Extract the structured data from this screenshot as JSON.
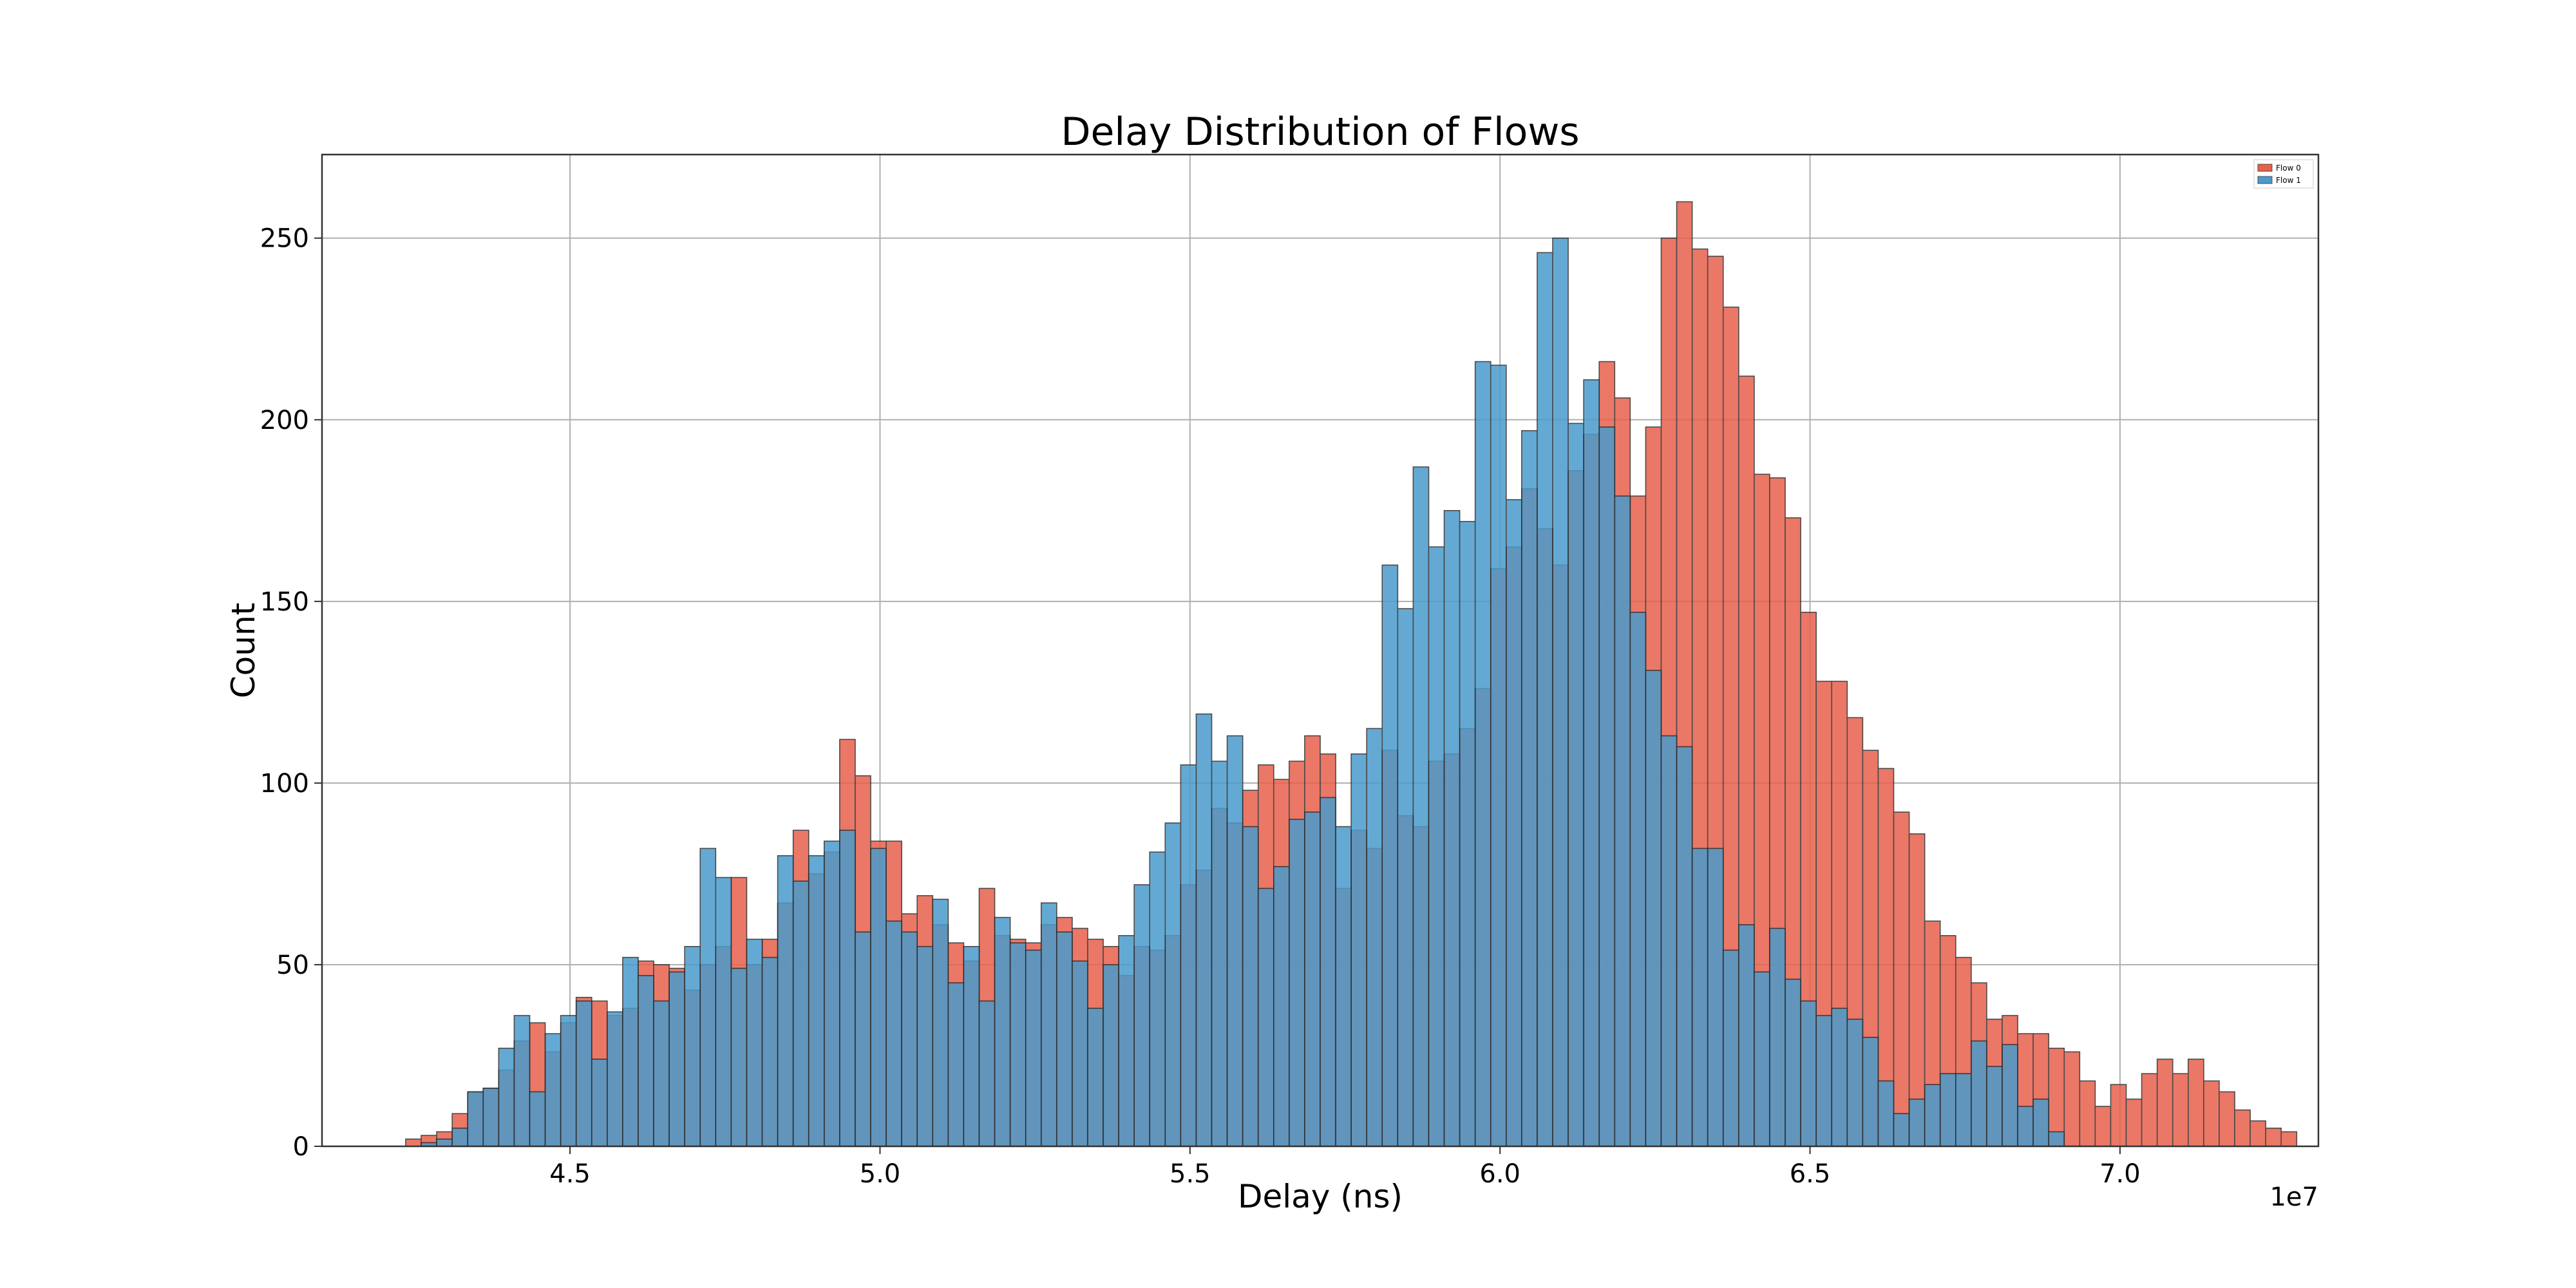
{
  "chart_data": {
    "type": "histogram",
    "title": "Delay Distribution of Flows",
    "xlabel": "Delay (ns)",
    "ylabel": "Count",
    "x_offset_label": "1e7",
    "xlim": [
      4.1,
      7.32
    ],
    "ylim": [
      0,
      273
    ],
    "xticks": [
      4.5,
      5.0,
      5.5,
      6.0,
      6.5,
      7.0
    ],
    "xtick_labels": [
      "4.5",
      "5.0",
      "5.5",
      "6.0",
      "6.5",
      "7.0"
    ],
    "yticks": [
      0,
      50,
      100,
      150,
      200,
      250
    ],
    "ytick_labels": [
      "0",
      "50",
      "100",
      "150",
      "200",
      "250"
    ],
    "grid": true,
    "legend_position": "top-right",
    "bin_start": 4.235,
    "bin_width": 0.025,
    "series": [
      {
        "name": "Flow 0",
        "color": "#e8604c",
        "values": [
          2,
          3,
          4,
          9,
          15,
          16,
          21,
          29,
          34,
          26,
          34,
          41,
          40,
          36,
          38,
          51,
          50,
          49,
          43,
          50,
          55,
          74,
          50,
          57,
          67,
          87,
          75,
          81,
          112,
          102,
          84,
          84,
          64,
          69,
          61,
          56,
          51,
          71,
          58,
          57,
          56,
          61,
          63,
          60,
          57,
          55,
          47,
          55,
          54,
          58,
          72,
          76,
          93,
          89,
          98,
          105,
          101,
          106,
          113,
          108,
          71,
          87,
          82,
          109,
          91,
          88,
          106,
          108,
          115,
          126,
          159,
          165,
          181,
          170,
          160,
          186,
          196,
          216,
          206,
          179,
          198,
          250,
          260,
          247,
          245,
          231,
          212,
          185,
          184,
          173,
          147,
          128,
          128,
          118,
          109,
          104,
          92,
          86,
          62,
          58,
          52,
          45,
          35,
          36,
          31,
          31,
          27,
          26,
          18,
          11,
          17,
          13,
          20,
          24,
          20,
          24,
          18,
          15,
          10,
          7,
          5,
          4
        ]
      },
      {
        "name": "Flow 1",
        "color": "#4a9bcc",
        "values": [
          1,
          2,
          5,
          15,
          16,
          27,
          36,
          15,
          31,
          36,
          40,
          24,
          37,
          52,
          47,
          40,
          48,
          55,
          82,
          74,
          49,
          57,
          52,
          80,
          73,
          80,
          84,
          87,
          59,
          82,
          62,
          59,
          55,
          68,
          45,
          55,
          40,
          63,
          56,
          54,
          67,
          59,
          51,
          38,
          50,
          58,
          72,
          81,
          89,
          105,
          119,
          106,
          113,
          88,
          71,
          77,
          90,
          92,
          96,
          88,
          108,
          115,
          160,
          148,
          187,
          165,
          175,
          172,
          216,
          215,
          178,
          197,
          246,
          250,
          199,
          211,
          198,
          179,
          147,
          131,
          113,
          110,
          82,
          82,
          54,
          61,
          48,
          60,
          46,
          40,
          36,
          38,
          35,
          30,
          18,
          9,
          13,
          17,
          20,
          20,
          29,
          22,
          28,
          11,
          13,
          4
        ],
        "bin_start": 4.26
      }
    ]
  }
}
